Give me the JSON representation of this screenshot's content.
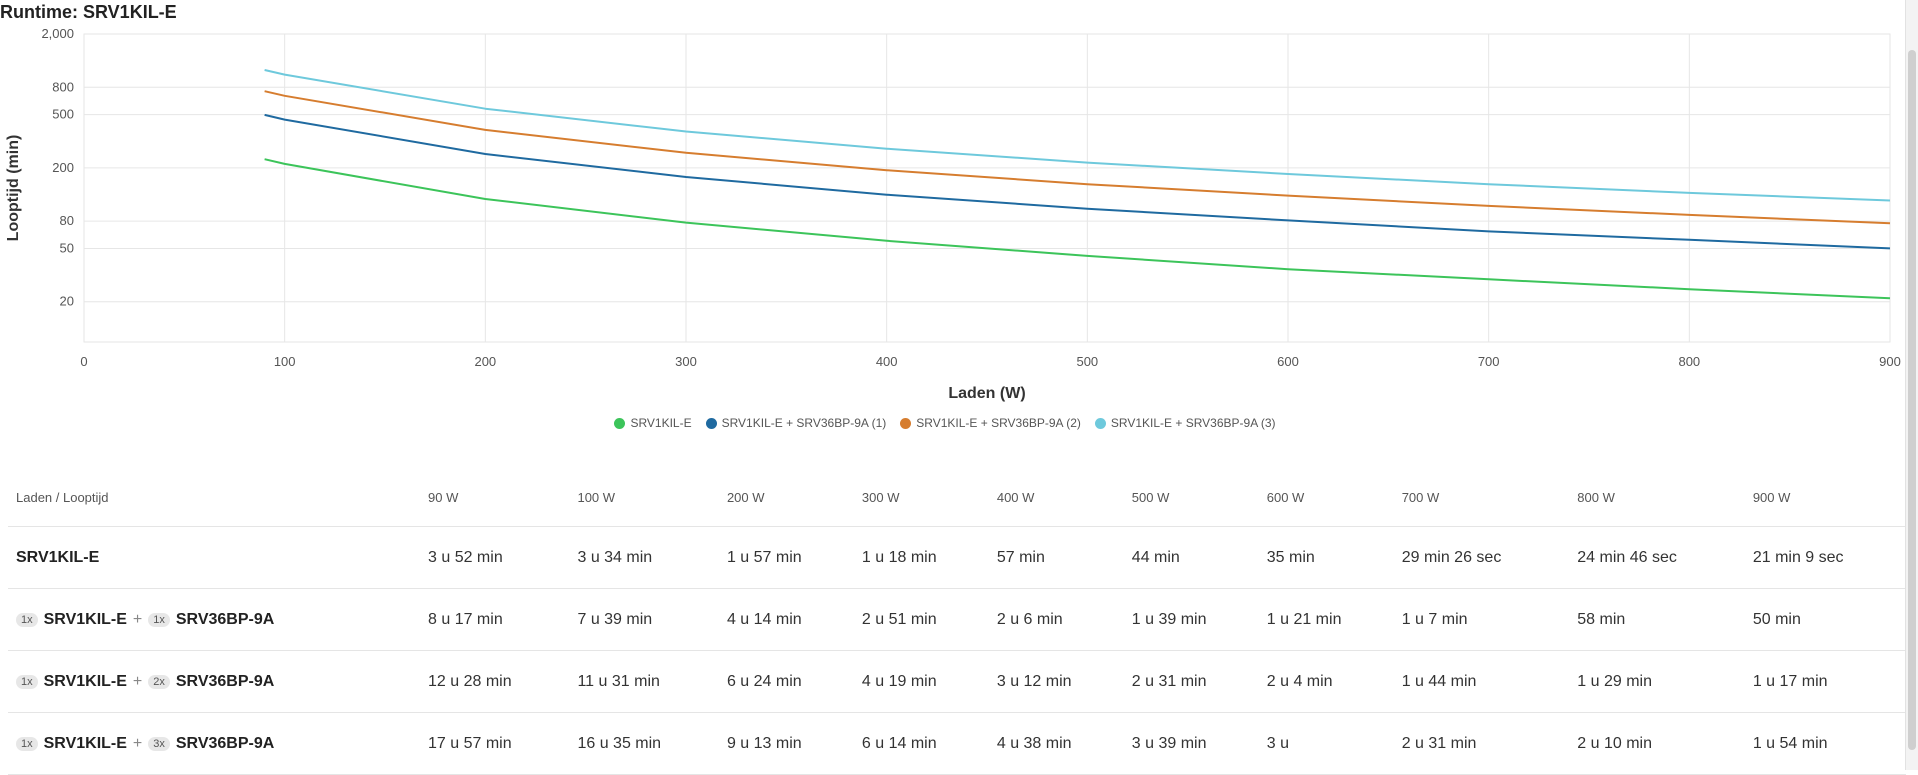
{
  "title": "Runtime: SRV1KIL-E",
  "chart_data": {
    "type": "line",
    "xlabel": "Laden (W)",
    "ylabel": "Looptijd (min)",
    "xlim": [
      0,
      900
    ],
    "ylim": [
      10,
      2000
    ],
    "yscale": "log",
    "x_ticks": [
      0,
      100,
      200,
      300,
      400,
      500,
      600,
      700,
      800,
      900
    ],
    "x_tick_labels": [
      "0",
      "100",
      "200",
      "300",
      "400",
      "500",
      "600",
      "700",
      "800",
      "900"
    ],
    "y_ticks": [
      20,
      50,
      80,
      200,
      500,
      800,
      2000
    ],
    "y_tick_labels": [
      "20",
      "50",
      "80",
      "200",
      "500",
      "800",
      "2,000"
    ],
    "grid": true,
    "legend_position": "bottom-center",
    "x": [
      90,
      100,
      200,
      300,
      400,
      500,
      600,
      700,
      800,
      900
    ],
    "series": [
      {
        "name": "SRV1KIL-E",
        "color": "#3cc45a",
        "values": [
          232,
          214,
          117,
          78,
          57,
          44,
          35,
          29.4,
          24.8,
          21.2
        ]
      },
      {
        "name": "SRV1KIL-E + SRV36BP-9A (1)",
        "color": "#1f6aa0",
        "values": [
          497,
          459,
          254,
          171,
          126,
          99,
          81,
          67,
          58,
          50
        ]
      },
      {
        "name": "SRV1KIL-E + SRV36BP-9A (2)",
        "color": "#d67d2f",
        "values": [
          748,
          691,
          384,
          259,
          192,
          151,
          124,
          104,
          89,
          77
        ]
      },
      {
        "name": "SRV1KIL-E + SRV36BP-9A (3)",
        "color": "#6ec9dc",
        "values": [
          1077,
          995,
          553,
          374,
          278,
          219,
          180,
          151,
          130,
          114
        ]
      }
    ]
  },
  "table": {
    "header_label": "Laden / Looptijd",
    "columns": [
      "90 W",
      "100 W",
      "200 W",
      "300 W",
      "400 W",
      "500 W",
      "600 W",
      "700 W",
      "800 W",
      "900 W"
    ],
    "rows": [
      {
        "ups": "SRV1KIL-E",
        "ups_qty": "",
        "battery": "",
        "battery_qty": "",
        "values": [
          "3 u 52 min",
          "3 u 34 min",
          "1 u 57 min",
          "1 u 18 min",
          "57 min",
          "44 min",
          "35 min",
          "29 min 26 sec",
          "24 min 46 sec",
          "21 min 9 sec"
        ]
      },
      {
        "ups": "SRV1KIL-E",
        "ups_qty": "1x",
        "battery": "SRV36BP-9A",
        "battery_qty": "1x",
        "values": [
          "8 u 17 min",
          "7 u 39 min",
          "4 u 14 min",
          "2 u 51 min",
          "2 u 6 min",
          "1 u 39 min",
          "1 u 21 min",
          "1 u 7 min",
          "58 min",
          "50 min"
        ]
      },
      {
        "ups": "SRV1KIL-E",
        "ups_qty": "1x",
        "battery": "SRV36BP-9A",
        "battery_qty": "2x",
        "values": [
          "12 u 28 min",
          "11 u 31 min",
          "6 u 24 min",
          "4 u 19 min",
          "3 u 12 min",
          "2 u 31 min",
          "2 u 4 min",
          "1 u 44 min",
          "1 u 29 min",
          "1 u 17 min"
        ]
      },
      {
        "ups": "SRV1KIL-E",
        "ups_qty": "1x",
        "battery": "SRV36BP-9A",
        "battery_qty": "3x",
        "values": [
          "17 u 57 min",
          "16 u 35 min",
          "9 u 13 min",
          "6 u 14 min",
          "4 u 38 min",
          "3 u 39 min",
          "3 u",
          "2 u 31 min",
          "2 u 10 min",
          "1 u 54 min"
        ]
      }
    ],
    "plus_sign": "+"
  }
}
